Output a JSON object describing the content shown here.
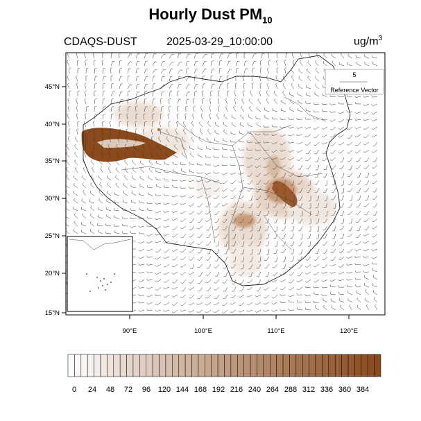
{
  "title": {
    "main": "Hourly Dust PM",
    "subscript": "10"
  },
  "model": "CDAQS-DUST",
  "datetime": "2025-03-29_10:00:00",
  "units": {
    "base": "ug/m",
    "superscript": "3"
  },
  "reference_vector": {
    "magnitude": "5",
    "label": "Reference Vector"
  },
  "axes": {
    "lat_ticks": [
      "45°N",
      "40°N",
      "35°N",
      "30°N",
      "25°N",
      "20°N",
      "15°N"
    ],
    "lon_ticks": [
      "90°E",
      "100°E",
      "110°E",
      "120°E"
    ]
  },
  "colorbar": {
    "labels": [
      "0",
      "24",
      "48",
      "72",
      "96",
      "120",
      "144",
      "168",
      "192",
      "216",
      "240",
      "264",
      "288",
      "312",
      "336",
      "360",
      "384"
    ],
    "color_low": "#ffffff",
    "color_high": "#8a4a1c"
  },
  "colors": {
    "dust_light": "#e7d4c8",
    "dust_mid": "#c89b7a",
    "dust_heavy": "#8a4a1c",
    "wind_barb": "#333333",
    "border": "#222222"
  }
}
